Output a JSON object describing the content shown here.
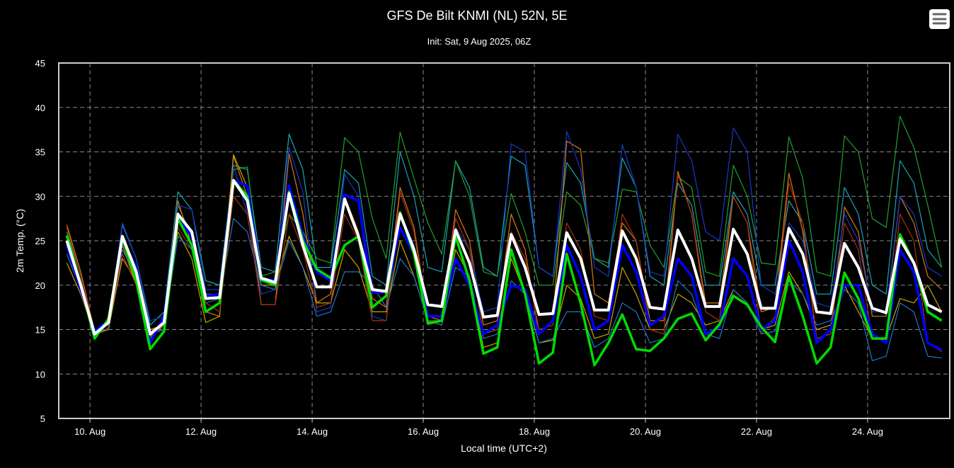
{
  "chart_data": {
    "type": "line",
    "title": "GFS De Bilt KNMI (NL) 52N, 5E",
    "subtitle": "Init: Sat, 9 Aug 2025, 06Z",
    "xlabel": "Local time (UTC+2)",
    "ylabel": "2m Temp. (°C)",
    "ylim": [
      5,
      45
    ],
    "yticks": [
      5,
      10,
      15,
      20,
      25,
      30,
      35,
      40,
      45
    ],
    "xlim": [
      "2025-08-09T10:30",
      "2025-08-25T11:30"
    ],
    "xticks": [
      {
        "date": "2025-08-10T00:00",
        "label": "10. Aug"
      },
      {
        "date": "2025-08-12T00:00",
        "label": "12. Aug"
      },
      {
        "date": "2025-08-14T00:00",
        "label": "14. Aug"
      },
      {
        "date": "2025-08-16T00:00",
        "label": "16. Aug"
      },
      {
        "date": "2025-08-18T00:00",
        "label": "18. Aug"
      },
      {
        "date": "2025-08-20T00:00",
        "label": "20. Aug"
      },
      {
        "date": "2025-08-22T00:00",
        "label": "22. Aug"
      },
      {
        "date": "2025-08-24T00:00",
        "label": "24. Aug"
      }
    ],
    "grid": true,
    "background": "#000000",
    "x": [
      "2025-08-09T14:00",
      "2025-08-09T20:00",
      "2025-08-10T02:00",
      "2025-08-10T08:00",
      "2025-08-10T14:00",
      "2025-08-10T20:00",
      "2025-08-11T02:00",
      "2025-08-11T08:00",
      "2025-08-11T14:00",
      "2025-08-11T20:00",
      "2025-08-12T02:00",
      "2025-08-12T08:00",
      "2025-08-12T14:00",
      "2025-08-12T20:00",
      "2025-08-13T02:00",
      "2025-08-13T08:00",
      "2025-08-13T14:00",
      "2025-08-13T20:00",
      "2025-08-14T02:00",
      "2025-08-14T08:00",
      "2025-08-14T14:00",
      "2025-08-14T20:00",
      "2025-08-15T02:00",
      "2025-08-15T08:00",
      "2025-08-15T14:00",
      "2025-08-15T20:00",
      "2025-08-16T02:00",
      "2025-08-16T08:00",
      "2025-08-16T14:00",
      "2025-08-16T20:00",
      "2025-08-17T02:00",
      "2025-08-17T08:00",
      "2025-08-17T14:00",
      "2025-08-17T20:00",
      "2025-08-18T02:00",
      "2025-08-18T08:00",
      "2025-08-18T14:00",
      "2025-08-18T20:00",
      "2025-08-19T02:00",
      "2025-08-19T08:00",
      "2025-08-19T14:00",
      "2025-08-19T20:00",
      "2025-08-20T02:00",
      "2025-08-20T08:00",
      "2025-08-20T14:00",
      "2025-08-20T20:00",
      "2025-08-21T02:00",
      "2025-08-21T08:00",
      "2025-08-21T14:00",
      "2025-08-21T20:00",
      "2025-08-22T02:00",
      "2025-08-22T08:00",
      "2025-08-22T14:00",
      "2025-08-22T20:00",
      "2025-08-23T02:00",
      "2025-08-23T08:00",
      "2025-08-23T14:00",
      "2025-08-23T20:00",
      "2025-08-24T02:00",
      "2025-08-24T08:00",
      "2025-08-24T14:00",
      "2025-08-24T20:00",
      "2025-08-25T02:00",
      "2025-08-25T08:00"
    ],
    "members": [
      {
        "color": "#1aa5b5",
        "values": [
          26,
          21,
          15,
          15.5,
          26.8,
          23,
          15.5,
          17,
          30.5,
          28.5,
          20.5,
          20,
          33.5,
          33,
          22,
          21.5,
          37,
          33,
          22,
          22,
          33,
          31.5,
          21,
          20,
          35,
          30,
          22,
          21.5,
          34,
          31,
          22,
          21,
          34.5,
          33.5,
          22,
          21,
          33.8,
          31.5,
          23,
          22,
          34.3,
          31,
          21,
          20,
          31.5,
          29,
          20,
          20,
          30.5,
          28,
          20,
          20,
          29.5,
          27,
          19,
          19,
          31,
          28,
          20,
          19,
          34,
          31.5,
          24,
          22
        ]
      },
      {
        "color": "#22a02a",
        "values": [
          25.5,
          20.5,
          14.5,
          16,
          25,
          21,
          14,
          15.5,
          29,
          25.5,
          19,
          19,
          33,
          33.3,
          21,
          21.5,
          28,
          26,
          23,
          22.5,
          36.6,
          35,
          27.5,
          23,
          37.2,
          32,
          27,
          23.5,
          34,
          30,
          21.5,
          21,
          30.3,
          26,
          20,
          20,
          30.5,
          29,
          23,
          22.5,
          30.8,
          30.5,
          24.5,
          22,
          32.2,
          31,
          21.5,
          21,
          33.5,
          30,
          22.5,
          22.3,
          36.7,
          32,
          21.5,
          21,
          36.8,
          35,
          27.5,
          26.5,
          39,
          35.5,
          29,
          22
        ]
      },
      {
        "color": "#d87a10",
        "values": [
          26.8,
          21.5,
          14.8,
          16,
          24.5,
          20,
          14.2,
          15.5,
          29.5,
          24.5,
          17,
          16.5,
          34.5,
          30,
          17.8,
          17.8,
          34.8,
          28,
          18,
          19,
          30,
          26,
          18.5,
          17.5,
          31,
          26.5,
          16.5,
          16,
          28.5,
          25,
          15.5,
          16,
          28,
          24,
          14.5,
          16,
          36.2,
          35.3,
          19,
          18,
          27,
          25,
          16,
          16,
          32.8,
          28,
          18,
          18,
          30,
          27,
          17,
          17.5,
          32.6,
          26,
          14,
          14.5,
          28.8,
          26,
          16.5,
          16.5,
          30,
          27,
          21,
          19.5
        ]
      },
      {
        "color": "#1838c8",
        "values": [
          24.5,
          20,
          15,
          15.5,
          27,
          23,
          16,
          16.5,
          29,
          28.5,
          19.5,
          19.5,
          33.5,
          28,
          19,
          19.5,
          35.5,
          30.5,
          17,
          17.5,
          32.5,
          30,
          16.5,
          16,
          28,
          24.5,
          15.5,
          16,
          26.5,
          24,
          17,
          17.5,
          35.9,
          35,
          22,
          21,
          37.3,
          33,
          22,
          21,
          35.8,
          31,
          21.5,
          21,
          37,
          34,
          26,
          25,
          37.7,
          35,
          20,
          19,
          27,
          25,
          18,
          17.5,
          28,
          25,
          17,
          17,
          30,
          28,
          22,
          21
        ]
      },
      {
        "color": "#c9a400",
        "values": [
          22.5,
          19,
          14.5,
          15,
          23,
          20.5,
          15,
          15.5,
          26,
          23,
          15.8,
          16.5,
          34.7,
          31,
          20,
          20,
          25.5,
          22,
          18,
          18,
          24,
          22,
          17,
          17,
          25,
          21,
          16,
          15.5,
          24,
          21,
          13,
          13.5,
          23,
          19,
          13.5,
          13.8,
          20,
          18.5,
          14,
          14.5,
          22,
          19,
          15,
          15,
          19,
          18,
          15.5,
          16,
          19.5,
          18,
          15,
          15.5,
          21.5,
          19,
          15,
          15.5,
          20,
          17,
          14,
          14,
          18.5,
          18,
          20,
          17
        ]
      },
      {
        "color": "#1f77c4",
        "values": [
          23.5,
          19.5,
          14.5,
          15.2,
          24,
          21,
          14.5,
          15,
          25.5,
          24,
          18,
          18.5,
          27.5,
          26,
          20,
          19.5,
          25,
          22,
          16.5,
          17,
          21.5,
          21.5,
          20,
          17.5,
          23,
          21,
          16,
          15.5,
          22,
          21,
          14,
          14.5,
          20.5,
          19,
          13.5,
          14,
          17,
          17,
          13,
          14,
          18,
          17,
          13.5,
          14,
          20.5,
          19,
          14.5,
          14,
          19.5,
          18,
          14.5,
          14.8,
          20.5,
          19,
          15.5,
          16,
          19.5,
          18,
          11.5,
          12,
          18,
          17,
          12,
          11.8
        ]
      },
      {
        "color": "#a83010",
        "values": [
          26.5,
          21,
          15,
          15.5,
          23.5,
          20,
          14.5,
          15.5,
          26.5,
          24,
          18,
          17,
          30,
          28,
          17.8,
          17.8,
          28,
          24,
          17.5,
          18,
          28,
          25,
          16,
          16,
          30.5,
          26,
          16,
          16,
          27.5,
          24,
          14.5,
          15,
          26,
          23,
          15,
          15.5,
          27,
          24,
          16.5,
          16,
          28,
          25,
          15,
          14.5,
          32.5,
          28,
          17,
          16,
          30,
          27,
          14.5,
          16.5,
          31.5,
          27,
          14,
          14.5,
          27,
          24,
          14,
          14,
          28,
          25,
          13.5,
          12.5
        ]
      }
    ],
    "highlighted": [
      {
        "role": "control",
        "color": "#0000ff",
        "values": [
          24.5,
          19.5,
          14.8,
          16,
          25.2,
          22,
          13.5,
          16.5,
          27.5,
          25.5,
          18.8,
          19,
          31.8,
          31.2,
          20.8,
          20.5,
          31.2,
          25.5,
          21.5,
          20.5,
          30.2,
          29.5,
          19.2,
          19.2,
          26.5,
          23.5,
          16.5,
          16.5,
          23,
          20,
          14.5,
          15.5,
          20,
          19.5,
          14.5,
          16,
          24.5,
          21,
          15,
          16,
          24.5,
          21.5,
          15.5,
          16.5,
          23,
          21,
          14.5,
          15.3,
          23,
          21,
          15,
          16,
          25,
          21.5,
          13.5,
          15,
          20,
          20,
          14.5,
          13.5,
          24,
          21.5,
          13.5,
          12.7
        ]
      },
      {
        "role": "operational",
        "color": "#00dd00",
        "values": [
          25.6,
          20,
          14,
          16.2,
          25.3,
          20.5,
          12.8,
          14.8,
          27.5,
          24.5,
          17,
          18,
          31.8,
          30,
          20.6,
          20,
          30.5,
          25,
          21.8,
          20.8,
          24.5,
          25.5,
          17.5,
          18.8,
          28.2,
          23.5,
          15.7,
          16,
          25.5,
          20.5,
          12.3,
          13,
          24,
          19,
          11.2,
          12.4,
          23.5,
          18,
          11,
          13.5,
          16.7,
          12.8,
          12.6,
          14,
          16.2,
          16.8,
          13.8,
          15.6,
          18.8,
          17.8,
          15.3,
          13.6,
          21,
          16.5,
          11.2,
          13,
          21.4,
          18.5,
          14,
          14,
          25.7,
          22.5,
          17,
          16
        ]
      },
      {
        "role": "mean",
        "color": "#ffffff",
        "values": [
          25,
          20,
          14.5,
          15.8,
          25.5,
          21.5,
          14.5,
          15.8,
          28,
          26,
          18.5,
          18.6,
          31.8,
          29.5,
          20.8,
          20.3,
          30.3,
          24.5,
          19.8,
          19.8,
          29.7,
          25.5,
          19.5,
          19.3,
          28,
          24,
          17.8,
          17.6,
          26.2,
          22.5,
          16.4,
          16.6,
          25.7,
          22,
          16.7,
          16.8,
          25.9,
          23,
          17.2,
          17.2,
          26.1,
          23,
          17.5,
          17.3,
          26.2,
          23,
          17.6,
          17.6,
          26.3,
          23.5,
          17.4,
          17.4,
          26.4,
          23.5,
          17,
          16.8,
          24.7,
          22,
          17.4,
          16.9,
          25.2,
          22.5,
          17.8,
          17
        ]
      }
    ]
  },
  "menu": {
    "icon": "hamburger-menu-icon"
  }
}
